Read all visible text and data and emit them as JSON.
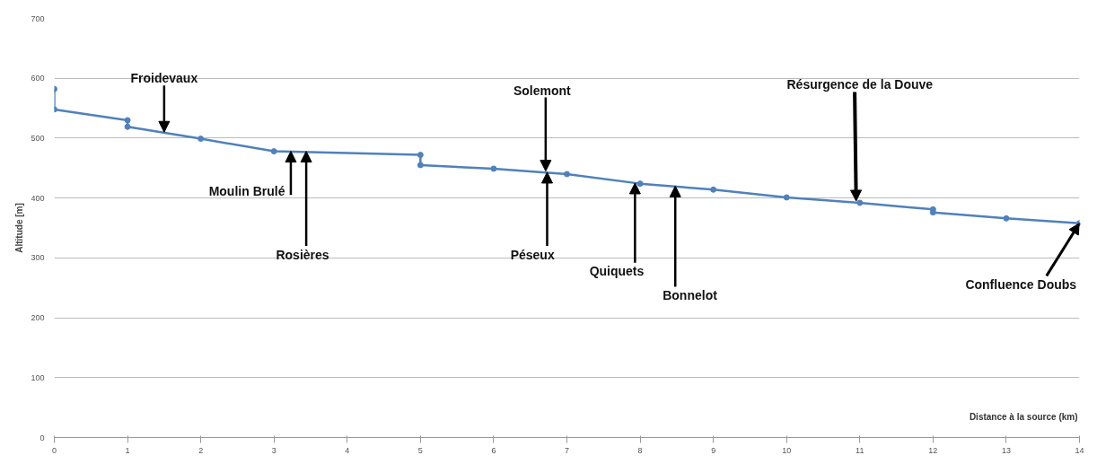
{
  "chart_data": {
    "type": "line",
    "xlabel": "Distance à la source (km)",
    "ylabel": "Altitude [m]",
    "x": [
      0,
      0,
      1,
      1,
      2,
      3,
      5,
      5,
      6,
      7,
      8,
      9,
      10,
      11,
      12,
      12,
      13,
      14
    ],
    "series": [
      {
        "color": "#4f81bd",
        "values": [
          582,
          548,
          530,
          519,
          499,
          478,
          472,
          455,
          449,
          440,
          424,
          414,
          401,
          392,
          381,
          376,
          366,
          358
        ]
      }
    ],
    "xlim": [
      0,
      14
    ],
    "xticks": [
      0,
      1,
      2,
      3,
      4,
      5,
      6,
      7,
      8,
      9,
      10,
      11,
      12,
      13,
      14
    ],
    "ylim": [
      0,
      700
    ],
    "yticks": [
      0,
      100,
      200,
      300,
      400,
      500,
      600,
      700
    ],
    "grid": "y",
    "marker": "circle",
    "line_style": "solid",
    "annotations": [
      {
        "text": "Froidevaux",
        "x": 1.5,
        "y": 510
      },
      {
        "text": "Moulin Brulé",
        "x": 3.23,
        "y": 478
      },
      {
        "text": "Rosières",
        "x": 3.44,
        "y": 478
      },
      {
        "text": "Solemont",
        "x": 6.71,
        "y": 445
      },
      {
        "text": "Péseux",
        "x": 6.73,
        "y": 443
      },
      {
        "text": "Quiquets",
        "x": 7.93,
        "y": 425
      },
      {
        "text": "Bonnelot",
        "x": 8.48,
        "y": 420
      },
      {
        "text": "Résurgence de la Douve",
        "x": 10.95,
        "y": 395
      },
      {
        "text": "Confluence Doubs",
        "x": 14,
        "y": 358
      }
    ]
  }
}
